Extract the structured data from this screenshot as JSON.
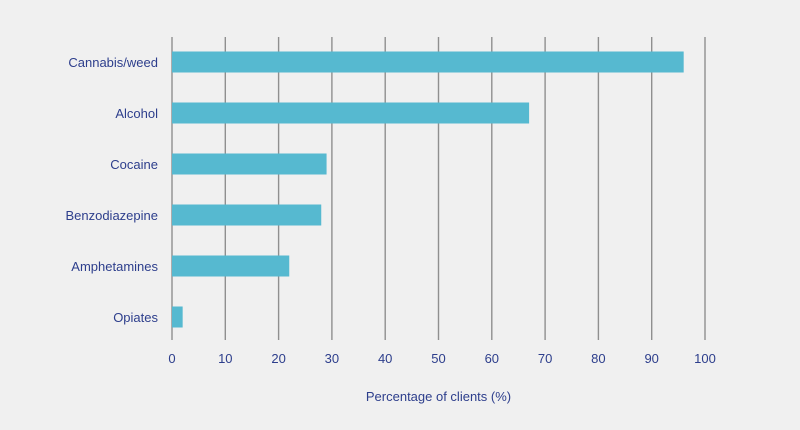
{
  "chart_data": {
    "type": "bar",
    "orientation": "horizontal",
    "categories": [
      "Cannabis/weed",
      "Alcohol",
      "Cocaine",
      "Benzodiazepine",
      "Amphetamines",
      "Opiates"
    ],
    "values": [
      96,
      67,
      29,
      28,
      22,
      2
    ],
    "xlabel": "Percentage of clients (%)",
    "xlim": [
      0,
      100
    ],
    "xticks": [
      0,
      10,
      20,
      30,
      40,
      50,
      60,
      70,
      80,
      90,
      100
    ],
    "grid": "vertical",
    "bar_color": "#56b9d0",
    "text_color": "#2d3e8c",
    "background": "#f0f0f0"
  }
}
